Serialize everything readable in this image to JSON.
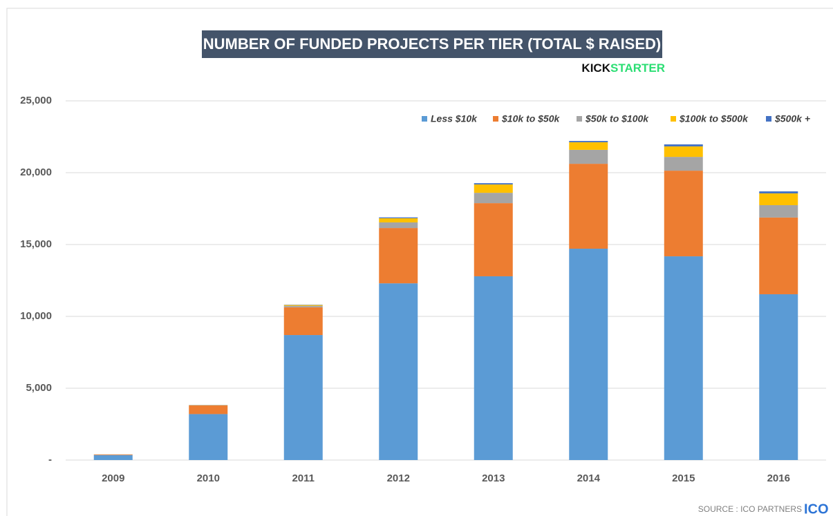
{
  "chart_data": {
    "type": "stacked_bar",
    "title": "NUMBER OF FUNDED PROJECTS PER TIER (TOTAL $ RAISED)",
    "brand": [
      "KICK",
      "STARTER"
    ],
    "source": "SOURCE : ICO PARTNERS",
    "source_logo": "ICO",
    "categories": [
      "2009",
      "2010",
      "2011",
      "2012",
      "2013",
      "2014",
      "2015",
      "2016"
    ],
    "series": [
      {
        "name": "Less $10k",
        "color": "#5b9bd5",
        "values": [
          350,
          3200,
          8700,
          12300,
          12790,
          14710,
          14180,
          11540
        ]
      },
      {
        "name": "$10k to $50k",
        "color": "#ed7d31",
        "values": [
          40,
          600,
          1930,
          3850,
          5090,
          5910,
          5960,
          5340
        ]
      },
      {
        "name": "$50k to $100k",
        "color": "#a5a5a5",
        "values": [
          5,
          20,
          100,
          390,
          720,
          970,
          960,
          860
        ]
      },
      {
        "name": "$100k to $500k",
        "color": "#ffc000",
        "values": [
          3,
          10,
          60,
          290,
          580,
          530,
          730,
          820
        ]
      },
      {
        "name": "$500k +",
        "color": "#4472c4",
        "values": [
          1,
          5,
          20,
          60,
          90,
          90,
          140,
          140
        ]
      }
    ],
    "ylim": [
      0,
      25000
    ],
    "yticks": [
      {
        "value": 0,
        "label": "-"
      },
      {
        "value": 5000,
        "label": "5,000"
      },
      {
        "value": 10000,
        "label": "10,000"
      },
      {
        "value": 15000,
        "label": "15,000"
      },
      {
        "value": 20000,
        "label": "20,000"
      },
      {
        "value": 25000,
        "label": "25,000"
      }
    ],
    "grid": true
  }
}
